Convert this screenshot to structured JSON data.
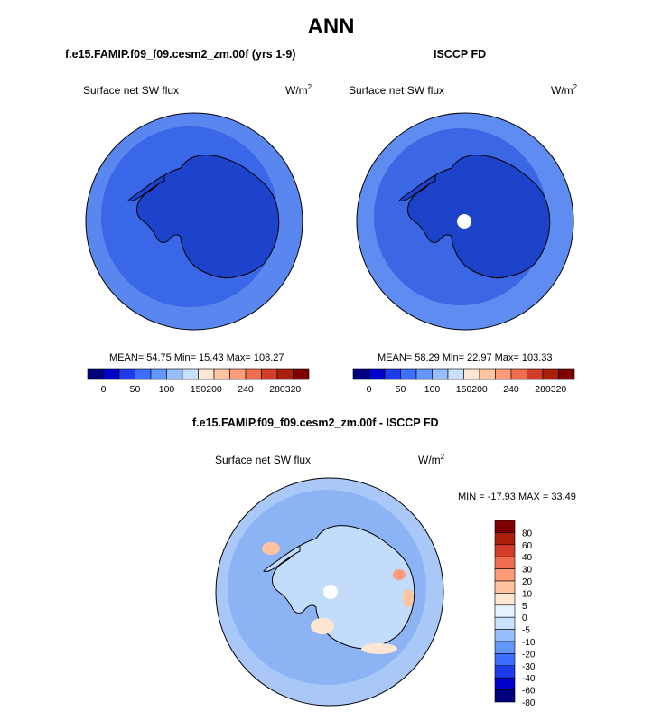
{
  "figure": {
    "title": "ANN"
  },
  "panels": [
    {
      "title": "f.e15.FAMIP.f09_f09.cesm2_zm.00f (yrs 1-9)",
      "variable": "Surface net SW flux",
      "units_base": "W/m",
      "units_exp": "2",
      "stats": "MEAN=  54.75  Min=  15.43  Max= 108.27"
    },
    {
      "title": "ISCCP FD",
      "variable": "Surface net SW flux",
      "units_base": "W/m",
      "units_exp": "2",
      "stats": "MEAN=  58.29  Min=  22.97  Max= 103.33"
    },
    {
      "title": "f.e15.FAMIP.f09_f09.cesm2_zm.00f - ISCCP FD",
      "variable": "Surface net SW flux",
      "units_base": "W/m",
      "units_exp": "2",
      "stats": "MIN = -17.93 MAX =  33.49"
    }
  ],
  "colors": {
    "abs_scale": [
      "#00007f",
      "#0000cc",
      "#1e3ceb",
      "#3c6eff",
      "#6496ff",
      "#96beff",
      "#c8e1ff",
      "#ffe6d2",
      "#ffc3a0",
      "#ff9b78",
      "#f06e50",
      "#d23c28",
      "#aa1e0a",
      "#7f0000"
    ],
    "diff_scale": [
      "#00007f",
      "#0000cc",
      "#1e3ceb",
      "#3c6eff",
      "#6496ff",
      "#96beff",
      "#c8e1ff",
      "#e6f2ff",
      "#ffe6d2",
      "#ffc3a0",
      "#ff9b78",
      "#f06e50",
      "#d23c28",
      "#aa1e0a",
      "#7f0000"
    ],
    "ocean_model": "#3a67e8",
    "ocean_outer": "#5a86ef",
    "land_model": "#1d43cc",
    "ocean_obs": "#3b66e4",
    "ocean_obs_outer": "#5f8cf0",
    "land_obs": "#1b42c9",
    "diff_ocean": "#8cb4f5",
    "diff_outer": "#a9c8f8",
    "diff_land": "#c4dcfb",
    "coast": "#000000"
  },
  "chart_data": [
    {
      "type": "heatmap",
      "projection": "south polar stereographic",
      "title": "f.e15.FAMIP.f09_f09.cesm2_zm.00f (yrs 1-9)",
      "variable": "Surface net SW flux",
      "units": "W/m2",
      "mean": 54.75,
      "min": 15.43,
      "max": 108.27,
      "colorbar_ticks": [
        "0",
        "50",
        "100",
        "150",
        "200",
        "240",
        "280",
        "320"
      ],
      "colorbar_levels": [
        0,
        25,
        50,
        75,
        100,
        125,
        150,
        175,
        200,
        220,
        240,
        260,
        280,
        300,
        320
      ]
    },
    {
      "type": "heatmap",
      "projection": "south polar stereographic",
      "title": "ISCCP FD",
      "variable": "Surface net SW flux",
      "units": "W/m2",
      "mean": 58.29,
      "min": 22.97,
      "max": 103.33,
      "colorbar_ticks": [
        "0",
        "50",
        "100",
        "150",
        "200",
        "240",
        "280",
        "320"
      ],
      "colorbar_levels": [
        0,
        25,
        50,
        75,
        100,
        125,
        150,
        175,
        200,
        220,
        240,
        260,
        280,
        300,
        320
      ]
    },
    {
      "type": "heatmap",
      "projection": "south polar stereographic",
      "title": "f.e15.FAMIP.f09_f09.cesm2_zm.00f - ISCCP FD",
      "variable": "Surface net SW flux",
      "units": "W/m2",
      "min": -17.93,
      "max": 33.49,
      "colorbar_ticks": [
        "80",
        "60",
        "40",
        "30",
        "20",
        "10",
        "5",
        "0",
        "-5",
        "-10",
        "-20",
        "-30",
        "-40",
        "-60",
        "-80"
      ]
    }
  ]
}
